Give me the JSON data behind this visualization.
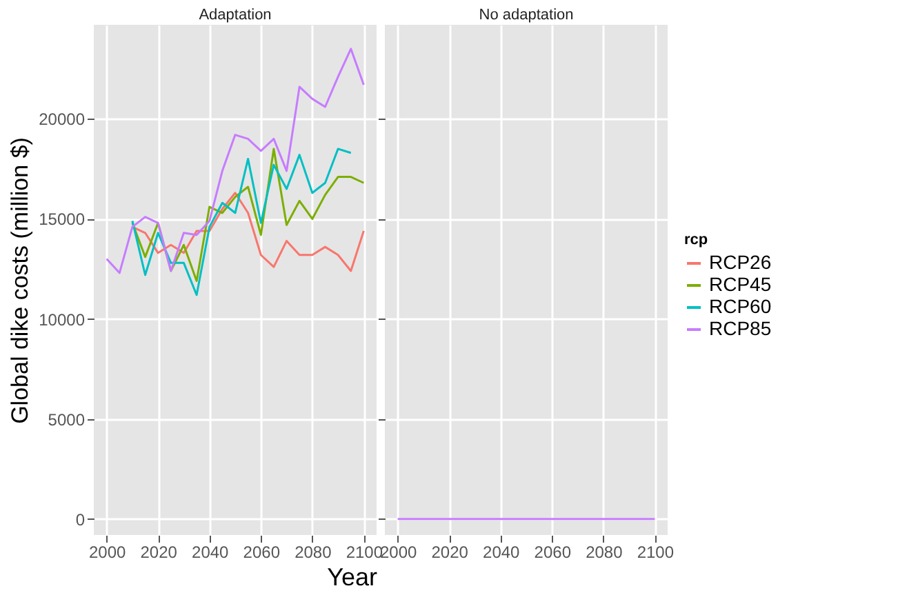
{
  "chart_data": [
    {
      "type": "line",
      "title": "Adaptation",
      "ylabel": "Global dike costs (million $)",
      "xlabel": "Year",
      "legend_title": "rcp",
      "legend": "right",
      "grid": true,
      "x": [
        2000,
        2005,
        2010,
        2015,
        2020,
        2025,
        2030,
        2035,
        2040,
        2045,
        2050,
        2055,
        2060,
        2065,
        2070,
        2075,
        2080,
        2085,
        2090,
        2095,
        2100
      ],
      "xlim": [
        1995,
        2105
      ],
      "xticks": [
        2000,
        2020,
        2040,
        2060,
        2080,
        2100
      ],
      "ylim": [
        -800,
        24700
      ],
      "yticks": [
        0,
        5000,
        10000,
        15000,
        20000
      ],
      "series": [
        {
          "name": "RCP26",
          "color": "#f8766d",
          "values": [
            null,
            null,
            14600,
            14300,
            13300,
            13700,
            13300,
            14400,
            14400,
            15500,
            16300,
            15300,
            13200,
            12600,
            13900,
            13200,
            13200,
            13600,
            13200,
            12400,
            14400
          ]
        },
        {
          "name": "RCP45",
          "color": "#7cae00",
          "values": [
            null,
            null,
            14800,
            13100,
            14800,
            12400,
            13700,
            11900,
            15600,
            15300,
            16100,
            16600,
            14200,
            18500,
            14700,
            15900,
            15000,
            16200,
            17100,
            17100,
            16800
          ]
        },
        {
          "name": "RCP60",
          "color": "#00bfc4",
          "values": [
            null,
            null,
            14900,
            12200,
            14300,
            12800,
            12800,
            11200,
            14600,
            15800,
            15300,
            18000,
            14800,
            17700,
            16500,
            18200,
            16300,
            16800,
            18500,
            18300,
            null
          ]
        },
        {
          "name": "RCP85",
          "color": "#c77cff",
          "values": [
            13000,
            12300,
            14600,
            15100,
            14800,
            12400,
            14300,
            14200,
            14900,
            17400,
            19200,
            19000,
            18400,
            19000,
            17400,
            21600,
            21000,
            20600,
            22100,
            23500,
            21700
          ]
        }
      ]
    },
    {
      "type": "line",
      "title": "No adaptation",
      "grid": true,
      "tick_labels": "x",
      "x": [
        2000,
        2005,
        2010,
        2015,
        2020,
        2025,
        2030,
        2035,
        2040,
        2045,
        2050,
        2055,
        2060,
        2065,
        2070,
        2075,
        2080,
        2085,
        2090,
        2095,
        2100
      ],
      "xlim": [
        1995,
        2105
      ],
      "xticks": [
        2000,
        2020,
        2040,
        2060,
        2080,
        2100
      ],
      "ylim": [
        -800,
        24700
      ],
      "yticks": [
        0,
        5000,
        10000,
        15000,
        20000
      ],
      "series": [
        {
          "color": "#c77cff",
          "values": [
            0,
            0,
            0,
            0,
            0,
            0,
            0,
            0,
            0,
            0,
            0,
            0,
            0,
            0,
            0,
            0,
            0,
            0,
            0,
            0,
            0
          ]
        }
      ]
    }
  ]
}
